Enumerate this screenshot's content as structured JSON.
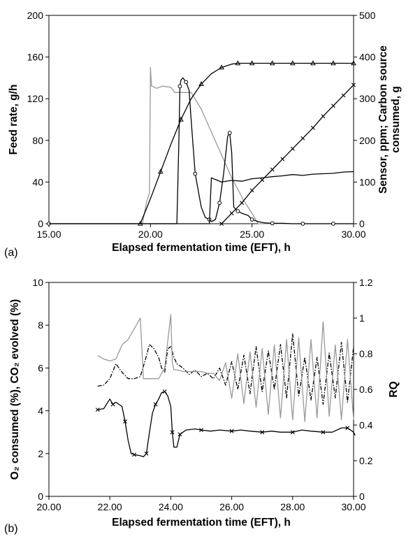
{
  "chart_data": [
    {
      "type": "line",
      "panel_label": "(a)",
      "xlabel": "Elapsed fermentation time (EFT), h",
      "ylabel_left": "Feed rate, g/h",
      "ylabel_right_line1": "Sensor, ppm; Carbon source",
      "ylabel_right_line2": "consumed, g",
      "xlim": [
        15,
        30
      ],
      "ylim_left": [
        0,
        200
      ],
      "ylim_right": [
        0,
        500
      ],
      "x_ticks": [
        "15.00",
        "20.00",
        "25.00",
        "30.00"
      ],
      "y_left_ticks": [
        "0",
        "40",
        "80",
        "120",
        "160",
        "200"
      ],
      "y_right_ticks": [
        "0",
        "100",
        "200",
        "300",
        "400",
        "500"
      ],
      "series": [
        {
          "axis": "left",
          "color": "#999999",
          "marker": "none",
          "x": [
            15,
            19.6,
            19.8,
            19.95,
            20.0,
            20.05,
            20.1,
            20.3,
            20.6,
            21.0,
            21.2,
            21.5,
            21.8,
            22.0,
            22.5,
            23.0,
            23.5,
            24.0,
            24.3,
            24.6,
            25.0,
            25.3,
            30
          ],
          "y": [
            0,
            0,
            20,
            30,
            150,
            132,
            132,
            130,
            132,
            131,
            126,
            126,
            126,
            126,
            110,
            88,
            66,
            44,
            33,
            22,
            10,
            0,
            0
          ]
        },
        {
          "axis": "right",
          "color": "#000000",
          "marker": "triangle",
          "x": [
            19.5,
            20.0,
            20.5,
            21.0,
            21.5,
            22.0,
            22.5,
            23.0,
            23.5,
            24.0,
            24.3,
            24.6,
            25.0,
            25.5,
            26.0,
            26.5,
            27.0,
            27.5,
            28.0,
            28.5,
            29.0,
            29.5,
            30.0
          ],
          "y": [
            0,
            60,
            125,
            190,
            250,
            300,
            335,
            360,
            375,
            383,
            385,
            385,
            385,
            385,
            385,
            385,
            385,
            385,
            385,
            385,
            385,
            385,
            385
          ]
        },
        {
          "axis": "right",
          "color": "#000000",
          "marker": "circle",
          "x": [
            15,
            21.3,
            21.4,
            21.45,
            21.5,
            21.6,
            21.75,
            21.9,
            22.0,
            22.2,
            22.5,
            22.7,
            22.9,
            23.0,
            23.2,
            23.4,
            23.6,
            23.8,
            23.9,
            24.0,
            24.1,
            24.3,
            24.5,
            24.8,
            25.0,
            25.3,
            25.6,
            26.0,
            26.5,
            27.0,
            27.5,
            28.0,
            28.5,
            29.0,
            29.5,
            30.0
          ],
          "y": [
            0,
            0,
            200,
            330,
            345,
            350,
            340,
            320,
            250,
            120,
            40,
            15,
            10,
            5,
            10,
            50,
            120,
            210,
            218,
            170,
            40,
            30,
            25,
            20,
            10,
            5,
            2,
            1,
            1,
            0,
            0,
            0,
            0,
            0,
            0,
            0
          ]
        },
        {
          "axis": "right",
          "color": "#000000",
          "marker": "none",
          "x": [
            15,
            22.9,
            23.0,
            23.5,
            24.0,
            24.5,
            25.0,
            25.5,
            26.0,
            26.5,
            27.0,
            27.5,
            28.0,
            28.5,
            29.0,
            29.5,
            30.0
          ],
          "y": [
            0,
            0,
            110,
            100,
            104,
            102,
            108,
            110,
            113,
            115,
            118,
            116,
            119,
            120,
            121,
            124,
            125
          ]
        },
        {
          "axis": "right",
          "color": "#000000",
          "marker": "x",
          "x": [
            23.5,
            24.0,
            24.5,
            25.0,
            25.5,
            26.0,
            26.5,
            27.0,
            27.5,
            28.0,
            28.5,
            29.0,
            29.5,
            30.0
          ],
          "y": [
            0,
            25,
            50,
            80,
            105,
            130,
            155,
            180,
            205,
            230,
            258,
            283,
            308,
            333
          ]
        }
      ]
    },
    {
      "type": "line",
      "panel_label": "(b)",
      "xlabel": "Elapsed fermentation time (EFT), h",
      "ylabel_left": "O₂ consumed (%), CO₂ evolved (%)",
      "ylabel_right": "RQ",
      "xlim": [
        20,
        30
      ],
      "ylim_left": [
        0,
        10
      ],
      "ylim_right": [
        0,
        1.2
      ],
      "x_ticks": [
        "20.00",
        "22.00",
        "24.00",
        "26.00",
        "28.00",
        "30.00"
      ],
      "y_left_ticks": [
        "0",
        "2",
        "4",
        "6",
        "8",
        "10"
      ],
      "y_right_ticks": [
        "0",
        "0.2",
        "0.4",
        "0.6",
        "0.8",
        "1",
        "1.2"
      ],
      "series": [
        {
          "axis": "left",
          "color": "#000000",
          "marker": "x",
          "dash": "solid",
          "x": [
            21.6,
            21.8,
            22.0,
            22.1,
            22.2,
            22.4,
            22.5,
            22.6,
            22.7,
            22.8,
            23.0,
            23.1,
            23.2,
            23.3,
            23.4,
            23.5,
            23.6,
            23.7,
            23.8,
            23.9,
            24.0,
            24.05,
            24.1,
            24.2,
            24.3,
            24.5,
            24.8,
            25.0,
            25.3,
            25.6,
            26.0,
            26.3,
            26.6,
            27.0,
            27.3,
            27.6,
            28.0,
            28.3,
            28.6,
            29.0,
            29.3,
            29.6,
            29.8,
            30.0,
            30.05
          ],
          "y": [
            4.05,
            4.1,
            4.55,
            4.3,
            4.4,
            4.2,
            3.5,
            2.6,
            2.0,
            1.95,
            1.9,
            1.85,
            2.0,
            3.0,
            3.9,
            4.3,
            4.55,
            4.85,
            4.9,
            4.7,
            4.2,
            3.0,
            2.3,
            2.3,
            2.9,
            3.1,
            3.15,
            3.1,
            3.05,
            3.1,
            3.05,
            3.1,
            3.05,
            3.0,
            3.05,
            3.0,
            3.0,
            3.1,
            3.05,
            3.0,
            3.0,
            3.2,
            3.2,
            3.0,
            2.85
          ]
        },
        {
          "axis": "left",
          "color": "#000000",
          "marker": "none",
          "dash": "dashdot",
          "x": [
            21.6,
            21.8,
            22.0,
            22.2,
            22.4,
            22.6,
            22.8,
            23.0,
            23.15,
            23.3,
            23.45,
            23.6,
            23.7,
            23.8,
            23.9,
            24.0,
            24.1,
            24.2,
            24.4,
            24.6,
            24.8,
            25.0,
            25.2,
            25.4,
            25.6,
            25.8,
            26.0,
            26.2,
            26.4,
            26.6,
            26.8,
            27.0,
            27.2,
            27.4,
            27.6,
            27.8,
            28.0,
            28.2,
            28.4,
            28.6,
            28.8,
            29.0,
            29.2,
            29.4,
            29.6,
            29.8,
            30.0
          ],
          "y": [
            5.15,
            5.2,
            5.5,
            6.2,
            5.8,
            5.5,
            5.5,
            5.6,
            6.3,
            7.1,
            6.9,
            6.5,
            6.0,
            5.8,
            6.9,
            7.0,
            6.5,
            6.2,
            6.0,
            5.7,
            5.9,
            5.6,
            5.75,
            5.5,
            6.0,
            5.2,
            6.3,
            5.0,
            6.6,
            4.8,
            7.0,
            4.9,
            6.8,
            5.0,
            7.1,
            4.6,
            7.6,
            4.7,
            6.5,
            4.5,
            6.5,
            4.3,
            6.7,
            4.6,
            7.2,
            4.4,
            7.0
          ]
        },
        {
          "axis": "right",
          "color": "#999999",
          "marker": "none",
          "dash": "solid",
          "x": [
            21.6,
            21.8,
            22.0,
            22.2,
            22.4,
            22.6,
            22.8,
            23.0,
            23.1,
            23.2,
            23.4,
            23.6,
            23.8,
            24.0,
            24.05,
            24.1,
            24.2,
            24.4,
            24.6,
            24.8,
            25.0,
            25.2,
            25.4,
            25.6,
            25.8,
            26.0,
            26.2,
            26.4,
            26.6,
            26.8,
            27.0,
            27.2,
            27.4,
            27.6,
            27.8,
            28.0,
            28.2,
            28.4,
            28.6,
            28.8,
            29.0,
            29.2,
            29.4,
            29.6,
            29.8,
            30.0
          ],
          "y": [
            0.79,
            0.77,
            0.76,
            0.77,
            0.85,
            0.88,
            0.94,
            1.0,
            0.66,
            0.66,
            0.66,
            0.66,
            0.72,
            1.02,
            0.75,
            0.71,
            0.71,
            0.7,
            0.7,
            0.7,
            0.7,
            0.69,
            0.69,
            0.65,
            0.75,
            0.55,
            0.8,
            0.52,
            0.81,
            0.5,
            0.83,
            0.46,
            0.85,
            0.44,
            0.88,
            0.43,
            0.89,
            0.42,
            0.88,
            0.44,
            0.98,
            0.45,
            0.85,
            0.43,
            0.88,
            0.43
          ]
        }
      ]
    }
  ]
}
